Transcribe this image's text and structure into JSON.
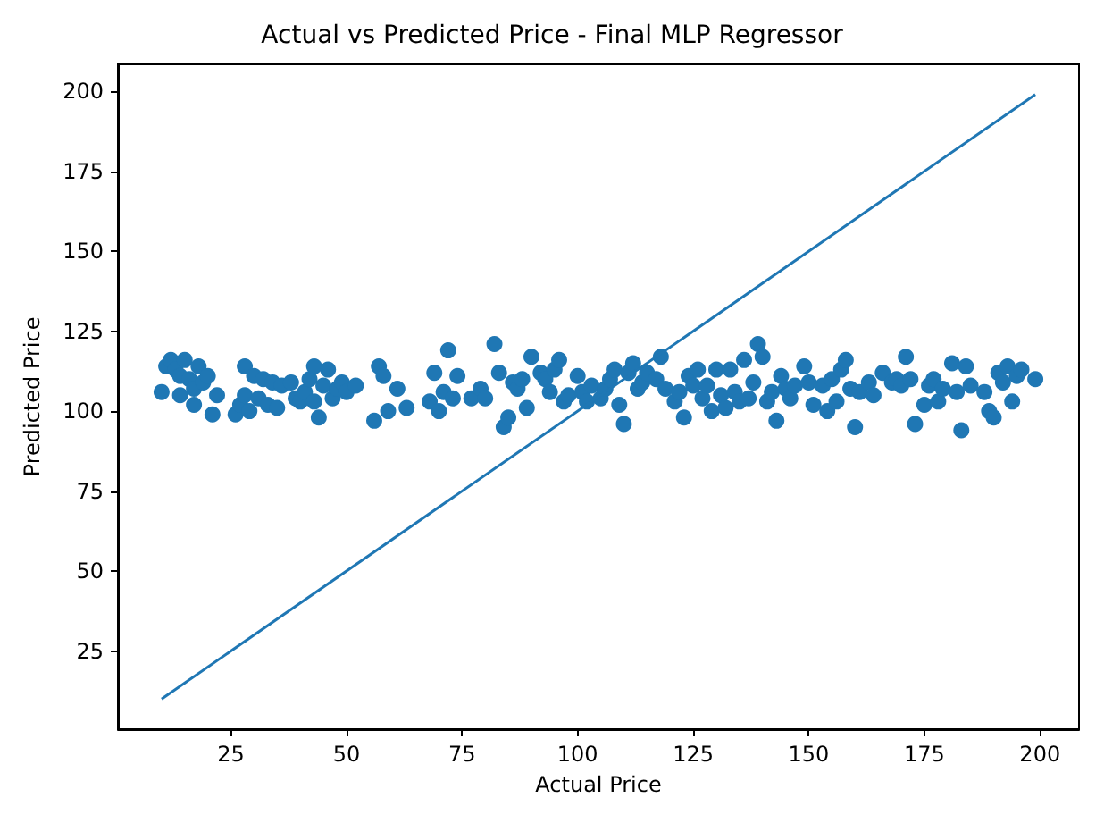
{
  "chart_data": {
    "type": "scatter",
    "title": "Actual vs Predicted Price - Final MLP Regressor",
    "xlabel": "Actual Price",
    "ylabel": "Predicted Price",
    "xlim": [
      0.55,
      208.45
    ],
    "ylim": [
      0.55,
      208.45
    ],
    "xticks": [
      25,
      50,
      75,
      100,
      125,
      150,
      175,
      200
    ],
    "yticks": [
      25,
      50,
      75,
      100,
      125,
      150,
      175,
      200
    ],
    "grid": false,
    "marker": "circle",
    "series": [
      {
        "color": "#1f77b4",
        "x": [
          10,
          11,
          12,
          13,
          14,
          14,
          15,
          16,
          17,
          17,
          18,
          19,
          20,
          21,
          22,
          26,
          27,
          28,
          28,
          29,
          30,
          31,
          32,
          33,
          34,
          35,
          36,
          38,
          39,
          40,
          41,
          42,
          43,
          43,
          44,
          45,
          46,
          47,
          48,
          49,
          50,
          52,
          56,
          57,
          58,
          59,
          61,
          63,
          68,
          69,
          70,
          71,
          72,
          73,
          74,
          77,
          79,
          80,
          82,
          83,
          84,
          85,
          86,
          87,
          88,
          89,
          90,
          92,
          93,
          94,
          95,
          96,
          97,
          98,
          100,
          101,
          102,
          103,
          105,
          106,
          107,
          108,
          109,
          110,
          111,
          112,
          113,
          114,
          115,
          117,
          118,
          119,
          121,
          122,
          123,
          124,
          125,
          126,
          127,
          128,
          129,
          130,
          131,
          132,
          133,
          134,
          135,
          136,
          137,
          138,
          139,
          140,
          141,
          142,
          143,
          144,
          145,
          146,
          147,
          149,
          150,
          151,
          153,
          154,
          155,
          156,
          157,
          158,
          159,
          160,
          161,
          163,
          164,
          166,
          168,
          169,
          170,
          171,
          172,
          173,
          175,
          176,
          177,
          178,
          179,
          181,
          182,
          183,
          184,
          185,
          188,
          189,
          190,
          191,
          192,
          193,
          194,
          195,
          196,
          199
        ],
        "values": [
          106,
          114,
          116,
          113,
          111,
          105,
          116,
          110,
          102,
          107,
          114,
          109,
          111,
          99,
          105,
          99,
          102,
          114,
          105,
          100,
          111,
          104,
          110,
          102,
          109,
          101,
          108,
          109,
          104,
          103,
          106,
          110,
          114,
          103,
          98,
          108,
          113,
          104,
          107,
          109,
          106,
          108,
          97,
          114,
          111,
          100,
          107,
          101,
          103,
          112,
          100,
          106,
          119,
          104,
          111,
          104,
          107,
          104,
          121,
          112,
          95,
          98,
          109,
          107,
          110,
          101,
          117,
          112,
          110,
          106,
          113,
          116,
          103,
          105,
          111,
          106,
          103,
          108,
          104,
          107,
          110,
          113,
          102,
          96,
          112,
          115,
          107,
          109,
          112,
          110,
          117,
          107,
          103,
          106,
          98,
          111,
          108,
          113,
          104,
          108,
          100,
          113,
          105,
          101,
          113,
          106,
          103,
          116,
          104,
          109,
          121,
          117,
          103,
          106,
          97,
          111,
          107,
          104,
          108,
          114,
          109,
          102,
          108,
          100,
          110,
          103,
          113,
          116,
          107,
          95,
          106,
          109,
          105,
          112,
          109,
          110,
          108,
          117,
          110,
          96,
          102,
          108,
          110,
          103,
          107,
          115,
          106,
          94,
          114,
          108,
          106,
          100,
          98,
          112,
          109,
          114,
          103,
          111,
          113,
          110
        ]
      },
      {
        "type": "line",
        "color": "#1f77b4",
        "marker": "none",
        "x": [
          10,
          199
        ],
        "values": [
          10,
          199
        ]
      }
    ]
  }
}
